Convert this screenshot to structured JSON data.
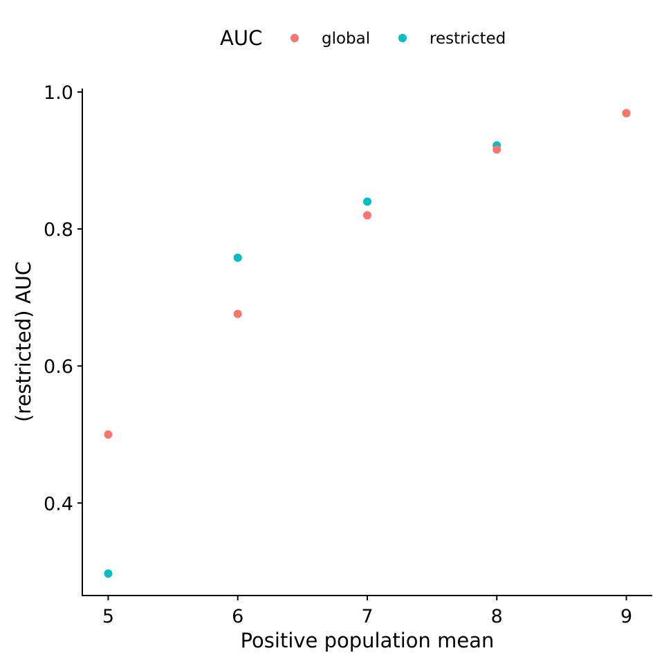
{
  "chart_data": {
    "type": "scatter",
    "title": "",
    "xlabel": "Positive population mean",
    "ylabel": "(restricted) AUC",
    "xlim": [
      4.8,
      9.2
    ],
    "ylim": [
      0.265,
      1.005
    ],
    "x_ticks": [
      5,
      6,
      7,
      8,
      9
    ],
    "x_tick_labels": [
      "5",
      "6",
      "7",
      "8",
      "9"
    ],
    "y_ticks": [
      0.4,
      0.6,
      0.8,
      1.0
    ],
    "y_tick_labels": [
      "0.4",
      "0.6",
      "0.8",
      "1.0"
    ],
    "grid": false,
    "legend": {
      "title": "AUC",
      "placement": "top",
      "entries": [
        "global",
        "restricted"
      ]
    },
    "series": [
      {
        "name": "restricted",
        "color": "#00BFC4",
        "x": [
          5,
          6,
          7,
          8,
          9
        ],
        "y": [
          0.297,
          0.758,
          0.84,
          0.922,
          0.969
        ]
      },
      {
        "name": "global",
        "color": "#F8766D",
        "x": [
          5,
          6,
          7,
          8,
          9
        ],
        "y": [
          0.5,
          0.676,
          0.82,
          0.916,
          0.969
        ]
      }
    ]
  }
}
